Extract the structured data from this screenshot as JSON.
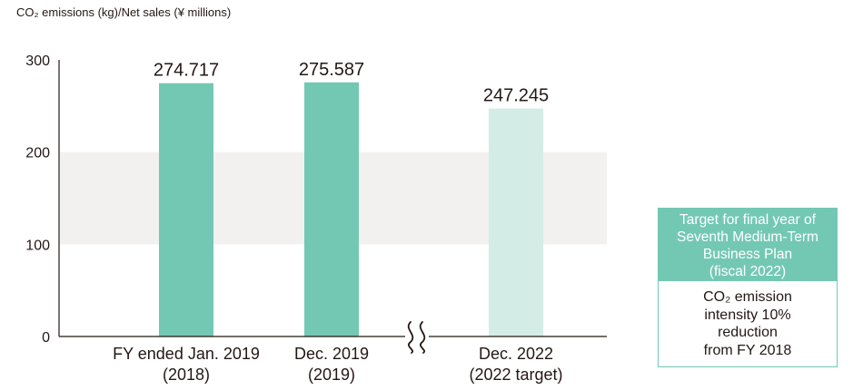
{
  "chart_data": {
    "type": "bar",
    "ylabel": "CO₂ emissions (kg)/Net sales (¥ millions)",
    "ylim": [
      0,
      300
    ],
    "yticks": [
      0,
      100,
      200,
      300
    ],
    "grid": false,
    "shaded_band": [
      100,
      200
    ],
    "axis_break_between": [
      1,
      2
    ],
    "categories": [
      [
        "FY ended Jan. 2019",
        "(2018)"
      ],
      [
        "Dec. 2019",
        "(2019)"
      ],
      [
        "Dec. 2022",
        "(2022 target)"
      ]
    ],
    "values": [
      274.717,
      275.587,
      247.245
    ],
    "value_labels": [
      "274.717",
      "275.587",
      "247.245"
    ],
    "colors": [
      "#73c8b4",
      "#73c8b4",
      "#d3ede6"
    ]
  },
  "target_box": {
    "title_lines": [
      "Target for final year of",
      "Seventh Medium-Term",
      "Business Plan",
      "(fiscal 2022)"
    ],
    "body_lines": [
      "CO₂ emission",
      "intensity 10%",
      "reduction",
      "from FY 2018"
    ],
    "color": "#73c8b4"
  }
}
